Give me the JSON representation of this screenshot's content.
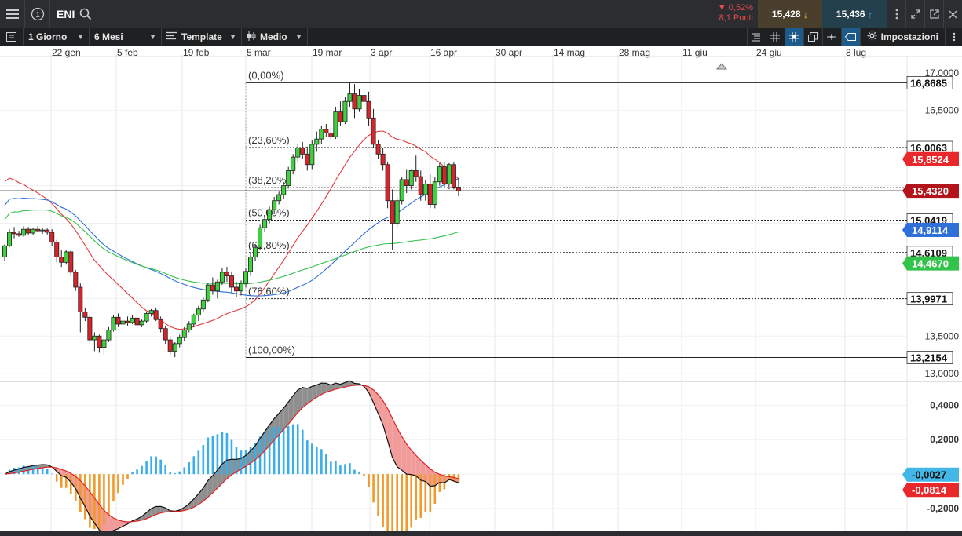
{
  "topbar": {
    "menu_icon": "hamburger-menu-icon",
    "info_icon": "info-circle-icon",
    "symbol": "ENI",
    "search_icon": "search-icon",
    "change_pct": "▼ 0,52%",
    "change_points": "8,1 Punti",
    "bid": "15,428",
    "ask": "15,436",
    "colors": {
      "down": "#e8494a",
      "bid_bg": "#4a3f2c",
      "ask_bg": "#25404d"
    }
  },
  "toolbar": {
    "interval": "1 Giorno",
    "range": "6 Mesi",
    "template_label": "Template",
    "chart_type_label": "Medio",
    "settings_label": "Impostazioni"
  },
  "chart_data": {
    "type": "candlestick",
    "x_ticks": [
      "22 gen",
      "5 feb",
      "19 feb",
      "5 mar",
      "19 mar",
      "3 apr",
      "16 apr",
      "30 apr",
      "14 mag",
      "28 mag",
      "11 giu",
      "24 giu",
      "8 lug"
    ],
    "y_ticks": [
      "17,0000",
      "16,5000",
      "13,5000",
      "13,0000"
    ],
    "ylim": [
      12.95,
      17.05
    ],
    "fibonacci": [
      {
        "label": "(0,00%)",
        "value": 16.8685,
        "value_label": "16,8685"
      },
      {
        "label": "(23,60%)",
        "value": 16.0063,
        "value_label": "16,0063"
      },
      {
        "label": "(38,20%)",
        "value": 15.473,
        "value_label": ""
      },
      {
        "label": "(50,00%)",
        "value": 15.0419,
        "value_label": "15,0419"
      },
      {
        "label": "(61,80%)",
        "value": 14.6109,
        "value_label": "14,6109"
      },
      {
        "label": "(78,60%)",
        "value": 13.9971,
        "value_label": "13,9971"
      },
      {
        "label": "(100,00%)",
        "value": 13.2154,
        "value_label": "13,2154"
      }
    ],
    "last_price": {
      "value": 15.432,
      "label": "15,4320"
    },
    "moving_averages": [
      {
        "color": "#e23a3a",
        "last": 15.8524,
        "last_label": "15,8524"
      },
      {
        "color": "#2f6fd8",
        "last": 14.9114,
        "last_label": "14,9114"
      },
      {
        "color": "#33c24a",
        "last": 14.467,
        "last_label": "14,4670"
      }
    ],
    "candles": [
      [
        14.55,
        14.72,
        14.5,
        14.7
      ],
      [
        14.7,
        14.92,
        14.68,
        14.88
      ],
      [
        14.88,
        14.95,
        14.8,
        14.86
      ],
      [
        14.86,
        14.9,
        14.82,
        14.84
      ],
      [
        14.84,
        14.96,
        14.82,
        14.92
      ],
      [
        14.92,
        14.95,
        14.85,
        14.87
      ],
      [
        14.87,
        14.94,
        14.84,
        14.92
      ],
      [
        14.92,
        14.96,
        14.88,
        14.9
      ],
      [
        14.9,
        14.94,
        14.86,
        14.91
      ],
      [
        14.91,
        14.93,
        14.85,
        14.88
      ],
      [
        14.88,
        14.92,
        14.7,
        14.75
      ],
      [
        14.75,
        14.78,
        14.48,
        14.55
      ],
      [
        14.55,
        14.65,
        14.42,
        14.48
      ],
      [
        14.48,
        14.65,
        14.45,
        14.62
      ],
      [
        14.62,
        14.64,
        14.3,
        14.35
      ],
      [
        14.35,
        14.38,
        14.1,
        14.15
      ],
      [
        14.15,
        14.2,
        13.55,
        13.82
      ],
      [
        13.82,
        13.88,
        13.7,
        13.75
      ],
      [
        13.75,
        13.78,
        13.4,
        13.45
      ],
      [
        13.45,
        13.55,
        13.3,
        13.5
      ],
      [
        13.5,
        13.52,
        13.28,
        13.35
      ],
      [
        13.35,
        13.48,
        13.25,
        13.45
      ],
      [
        13.45,
        13.62,
        13.42,
        13.58
      ],
      [
        13.58,
        13.78,
        13.56,
        13.75
      ],
      [
        13.75,
        13.8,
        13.62,
        13.66
      ],
      [
        13.66,
        13.74,
        13.62,
        13.7
      ],
      [
        13.7,
        13.76,
        13.64,
        13.68
      ],
      [
        13.68,
        13.78,
        13.66,
        13.74
      ],
      [
        13.74,
        13.76,
        13.6,
        13.65
      ],
      [
        13.65,
        13.72,
        13.62,
        13.7
      ],
      [
        13.7,
        13.82,
        13.68,
        13.8
      ],
      [
        13.8,
        13.86,
        13.76,
        13.84
      ],
      [
        13.84,
        13.88,
        13.7,
        13.72
      ],
      [
        13.72,
        13.76,
        13.55,
        13.6
      ],
      [
        13.6,
        13.64,
        13.4,
        13.45
      ],
      [
        13.45,
        13.48,
        13.25,
        13.3
      ],
      [
        13.3,
        13.42,
        13.22,
        13.4
      ],
      [
        13.4,
        13.52,
        13.35,
        13.48
      ],
      [
        13.48,
        13.62,
        13.44,
        13.58
      ],
      [
        13.58,
        13.7,
        13.55,
        13.66
      ],
      [
        13.66,
        13.8,
        13.62,
        13.78
      ],
      [
        13.78,
        13.9,
        13.7,
        13.86
      ],
      [
        13.86,
        14.02,
        13.82,
        13.98
      ],
      [
        13.98,
        14.2,
        13.95,
        14.18
      ],
      [
        14.18,
        14.28,
        14.05,
        14.1
      ],
      [
        14.1,
        14.25,
        14.0,
        14.22
      ],
      [
        14.22,
        14.4,
        14.18,
        14.35
      ],
      [
        14.35,
        14.42,
        14.22,
        14.3
      ],
      [
        14.3,
        14.36,
        14.08,
        14.15
      ],
      [
        14.15,
        14.22,
        14.02,
        14.1
      ],
      [
        14.1,
        14.24,
        14.04,
        14.2
      ],
      [
        14.2,
        14.4,
        14.15,
        14.36
      ],
      [
        14.36,
        14.6,
        14.3,
        14.55
      ],
      [
        14.55,
        14.72,
        14.5,
        14.68
      ],
      [
        14.68,
        14.98,
        14.65,
        14.94
      ],
      [
        14.94,
        15.1,
        14.88,
        15.05
      ],
      [
        15.05,
        15.22,
        15.0,
        15.18
      ],
      [
        15.18,
        15.35,
        15.12,
        15.3
      ],
      [
        15.3,
        15.42,
        15.25,
        15.38
      ],
      [
        15.38,
        15.55,
        15.32,
        15.5
      ],
      [
        15.5,
        15.75,
        15.46,
        15.7
      ],
      [
        15.7,
        15.92,
        15.65,
        15.88
      ],
      [
        15.88,
        16.05,
        15.82,
        16.0
      ],
      [
        16.0,
        16.08,
        15.85,
        15.92
      ],
      [
        15.92,
        16.02,
        15.7,
        15.78
      ],
      [
        15.78,
        16.1,
        15.72,
        16.05
      ],
      [
        16.05,
        16.22,
        15.95,
        16.12
      ],
      [
        16.12,
        16.3,
        16.05,
        16.25
      ],
      [
        16.25,
        16.32,
        16.15,
        16.2
      ],
      [
        16.2,
        16.28,
        16.1,
        16.15
      ],
      [
        16.15,
        16.55,
        16.12,
        16.48
      ],
      [
        16.48,
        16.62,
        16.3,
        16.35
      ],
      [
        16.35,
        16.68,
        16.32,
        16.62
      ],
      [
        16.62,
        16.88,
        16.55,
        16.72
      ],
      [
        16.72,
        16.85,
        16.4,
        16.52
      ],
      [
        16.52,
        16.78,
        16.48,
        16.7
      ],
      [
        16.7,
        16.82,
        16.55,
        16.62
      ],
      [
        16.62,
        16.75,
        16.3,
        16.4
      ],
      [
        16.4,
        16.52,
        16.0,
        16.05
      ],
      [
        16.05,
        16.1,
        15.85,
        15.92
      ],
      [
        15.92,
        16.0,
        15.7,
        15.78
      ],
      [
        15.78,
        15.82,
        15.2,
        15.3
      ],
      [
        15.3,
        15.45,
        14.65,
        15.0
      ],
      [
        15.0,
        15.35,
        14.95,
        15.3
      ],
      [
        15.3,
        15.62,
        15.25,
        15.58
      ],
      [
        15.58,
        15.72,
        15.4,
        15.5
      ],
      [
        15.5,
        15.72,
        15.45,
        15.7
      ],
      [
        15.7,
        15.9,
        15.55,
        15.62
      ],
      [
        15.62,
        15.7,
        15.3,
        15.38
      ],
      [
        15.38,
        15.58,
        15.3,
        15.52
      ],
      [
        15.52,
        15.65,
        15.2,
        15.25
      ],
      [
        15.25,
        15.62,
        15.2,
        15.55
      ],
      [
        15.55,
        15.8,
        15.5,
        15.75
      ],
      [
        15.75,
        15.82,
        15.48,
        15.52
      ],
      [
        15.52,
        15.8,
        15.45,
        15.78
      ],
      [
        15.78,
        15.82,
        15.45,
        15.48
      ],
      [
        15.48,
        15.6,
        15.36,
        15.43
      ]
    ],
    "macd": {
      "y_ticks": [
        "0,4000",
        "0,2000",
        "-0,2000"
      ],
      "ylim": [
        -0.3,
        0.52
      ],
      "last_macd": -0.0814,
      "last_macd_label": "-0,0814",
      "last_hist": -0.0027,
      "last_hist_label": "-0,0027"
    }
  }
}
